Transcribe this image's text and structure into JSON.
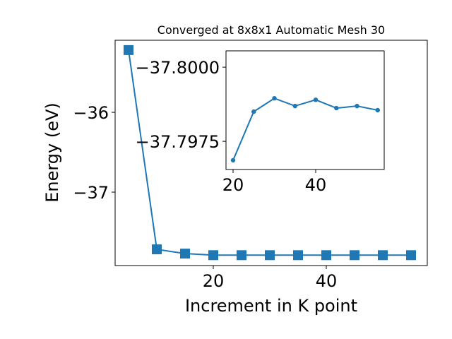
{
  "chart_data": [
    {
      "type": "line",
      "title": "Converged at 8x8x1 Automatic Mesh 30",
      "x_label": "Increment in K point",
      "y_label": "Energy (eV)",
      "x": [
        5,
        10,
        15,
        20,
        25,
        30,
        35,
        40,
        45,
        50,
        55
      ],
      "series": [
        {
          "color": "#1f77b4",
          "marker": "square",
          "values": [
            -35.22,
            -37.717,
            -37.77,
            -37.79,
            -37.79,
            -37.79,
            -37.79,
            -37.79,
            -37.79,
            -37.79,
            -37.79
          ]
        }
      ],
      "xlim": [
        2.625,
        57.875
      ],
      "ylim": [
        -37.92,
        -35.097
      ],
      "xticks": [
        20,
        40
      ],
      "yticks": [
        {
          "value": -37,
          "label": "−37"
        },
        {
          "value": -36,
          "label": "−36"
        }
      ]
    },
    {
      "type": "line",
      "x": [
        20,
        25,
        30,
        35,
        40,
        45,
        50,
        55
      ],
      "series": [
        {
          "color": "#1f77b4",
          "marker": "circle",
          "values": [
            -37.79686,
            -37.7985,
            -37.79895,
            -37.79869,
            -37.7989,
            -37.79862,
            -37.79869,
            -37.79855
          ]
        }
      ],
      "xlim": [
        18.29,
        56.58
      ],
      "ylim": [
        -37.79655,
        -37.80055
      ],
      "xticks": [
        20,
        40
      ],
      "yticks": [
        {
          "value": -37.8,
          "label": "−37.8000"
        },
        {
          "value": -37.7975,
          "label": "−37.7975"
        }
      ]
    }
  ]
}
